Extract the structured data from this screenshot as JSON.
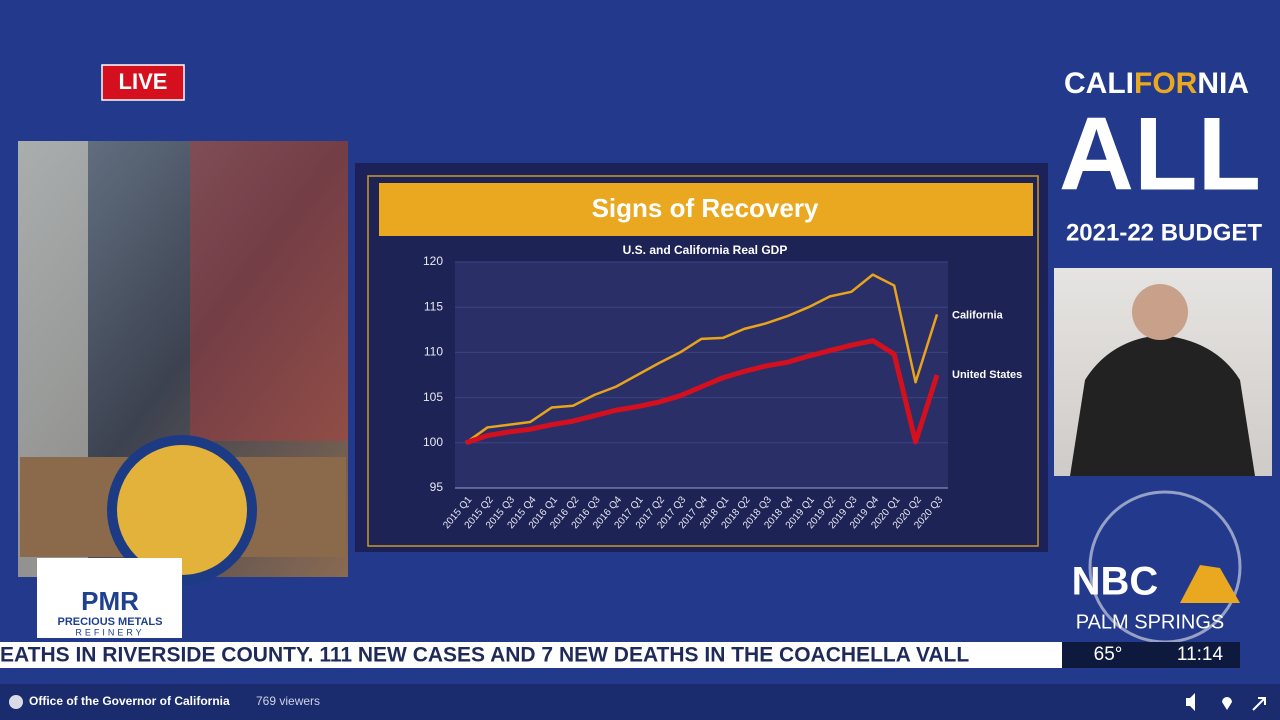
{
  "live_badge": "LIVE",
  "branding": {
    "line1_a": "CALI",
    "line1_b": "FOR",
    "line1_c": "NIA",
    "line2": "ALL",
    "line3": "2021-22 BUDGET"
  },
  "sponsor": {
    "logo": "PMR",
    "line1": "PRECIOUS METALS",
    "line2": "REFINERY"
  },
  "station": {
    "logo": "NBC",
    "city": "PALM SPRINGS"
  },
  "ticker": {
    "text": "EATHS IN RIVERSIDE COUNTY. 111 NEW CASES AND 7 NEW DEATHS IN THE COACHELLA VALL",
    "temperature": "65°",
    "time": "11:14"
  },
  "footer": {
    "channel": "Office of the Governor of California",
    "viewers": "769 viewers"
  },
  "chart_data": {
    "type": "line",
    "title": "Signs of Recovery",
    "subtitle": "U.S. and California Real GDP",
    "categories": [
      "2015 Q1",
      "2015 Q2",
      "2015 Q3",
      "2015 Q4",
      "2016 Q1",
      "2016 Q2",
      "2016 Q3",
      "2016 Q4",
      "2017 Q1",
      "2017 Q2",
      "2017 Q3",
      "2017 Q4",
      "2018 Q1",
      "2018 Q2",
      "2018 Q3",
      "2018 Q4",
      "2019 Q1",
      "2019 Q2",
      "2019 Q3",
      "2019 Q4",
      "2020 Q1",
      "2020 Q2",
      "2020 Q3"
    ],
    "series": [
      {
        "name": "California",
        "color": "#e9a41c",
        "values": [
          100,
          101.7,
          102,
          102.3,
          103.9,
          104.1,
          105.3,
          106.2,
          107.5,
          108.8,
          110,
          111.5,
          111.6,
          112.6,
          113.2,
          114,
          115,
          116.2,
          116.7,
          118.6,
          117.4,
          106.7,
          114.2
        ]
      },
      {
        "name": "United States",
        "color": "#d4101e",
        "values": [
          100,
          100.8,
          101.2,
          101.5,
          102,
          102.4,
          103,
          103.6,
          104,
          104.5,
          105.2,
          106.2,
          107.2,
          107.9,
          108.5,
          108.9,
          109.6,
          110.2,
          110.8,
          111.3,
          109.8,
          100.1,
          107.5
        ]
      }
    ],
    "ylim": [
      95,
      120
    ],
    "yticks": [
      95,
      100,
      105,
      110,
      115,
      120
    ],
    "grid": true
  }
}
